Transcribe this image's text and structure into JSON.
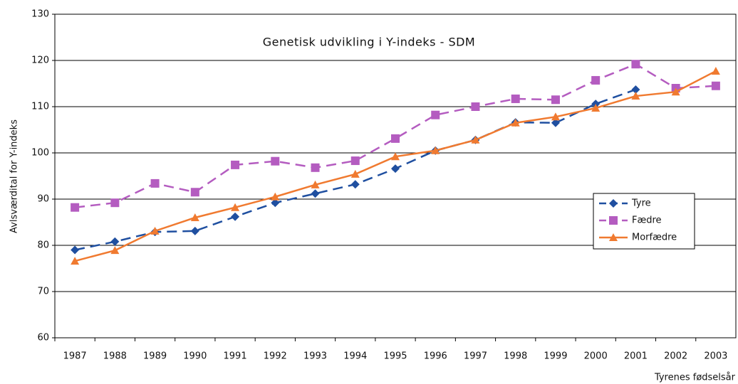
{
  "chart_data": {
    "type": "line",
    "title": "Genetisk udvikling i Y-indeks - SDM",
    "y_label": "Avlsværdital for Y-indeks",
    "x_label": "Tyrenes fødselsår",
    "categories": [
      "1987",
      "1988",
      "1989",
      "1990",
      "1991",
      "1992",
      "1993",
      "1994",
      "1995",
      "1996",
      "1997",
      "1998",
      "1999",
      "2000",
      "2001",
      "2002",
      "2003"
    ],
    "series": [
      {
        "name": "Tyre",
        "color": "#1f4fa0",
        "line_style": "dashed",
        "marker": "diamond",
        "values": [
          79,
          80.8,
          82.9,
          83.1,
          86.2,
          89.2,
          91.2,
          93.2,
          96.6,
          100.5,
          102.8,
          106.6,
          106.5,
          110.6,
          113.7,
          null,
          null
        ]
      },
      {
        "name": "Fædre",
        "color": "#b45cc0",
        "line_style": "dashed",
        "marker": "square",
        "values": [
          88.2,
          89.2,
          93.4,
          91.5,
          97.4,
          98.2,
          96.8,
          98.3,
          103.1,
          108.2,
          110,
          111.7,
          111.5,
          115.7,
          119.2,
          114,
          114.5
        ]
      },
      {
        "name": "Morfædre",
        "color": "#f07a30",
        "line_style": "solid",
        "marker": "triangle",
        "values": [
          76.6,
          78.9,
          83.1,
          86,
          88.2,
          90.5,
          93.1,
          95.4,
          99.2,
          100.5,
          102.8,
          106.5,
          107.8,
          109.7,
          112.3,
          113.2,
          117.7
        ]
      }
    ],
    "ylim": [
      60,
      130
    ],
    "yticks": [
      60,
      70,
      80,
      90,
      100,
      110,
      120,
      130
    ],
    "grid": true,
    "legend": "center right"
  }
}
